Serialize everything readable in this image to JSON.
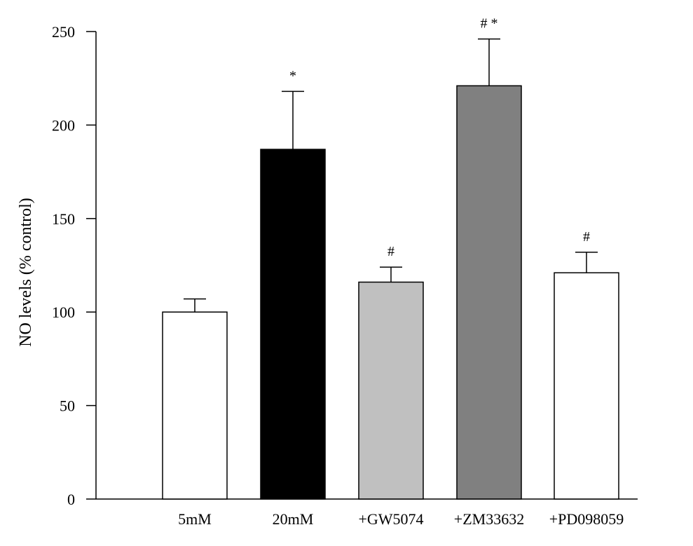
{
  "chart_data": {
    "type": "bar",
    "title": "",
    "xlabel": "",
    "ylabel": "NO levels (% control)",
    "categories": [
      "5mM",
      "20mM",
      "+GW5074",
      "+ZM33632",
      "+PD098059"
    ],
    "values": [
      100,
      187,
      116,
      221,
      121
    ],
    "errors": [
      7,
      31,
      8,
      25,
      11
    ],
    "annotations": [
      "",
      "*",
      "#",
      "# *",
      "#"
    ],
    "bar_colors": [
      "#ffffff",
      "#000000",
      "#c0c0c0",
      "#808080",
      "#ffffff"
    ],
    "ylim": [
      0,
      250
    ],
    "yticks": [
      0,
      50,
      100,
      150,
      200,
      250
    ],
    "grid": false,
    "legend": "none"
  }
}
